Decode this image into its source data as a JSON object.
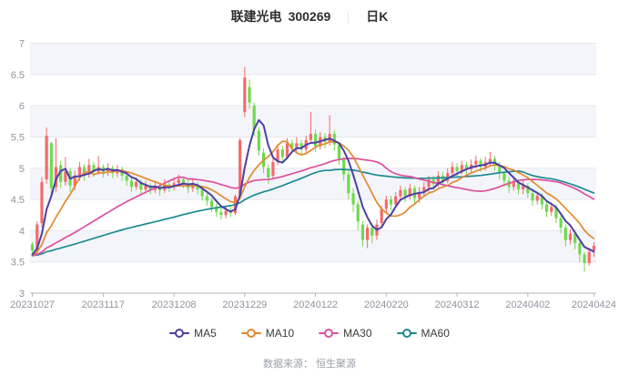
{
  "title": {
    "stock_name": "联建光电",
    "stock_code": "300269",
    "separator": "｜",
    "chart_type": "日K"
  },
  "footer": {
    "source_label": "数据来源： 恒生聚源"
  },
  "legend": [
    {
      "label": "MA5",
      "color": "#4b3fa5"
    },
    {
      "label": "MA10",
      "color": "#e08a2f"
    },
    {
      "label": "MA30",
      "color": "#de4f9e"
    },
    {
      "label": "MA60",
      "color": "#1e8a93"
    }
  ],
  "colors": {
    "up": "#f56a6a",
    "down": "#70d94e",
    "band": "#f4f5fa",
    "grid": "#e6e8ef",
    "axis_text": "#8f949e",
    "axis_line": "#b0b3ba",
    "title_text": "#2f2f2f"
  },
  "chart_data": {
    "type": "candlestick",
    "title": "联建光电 300269 日K",
    "ylim": [
      3,
      7
    ],
    "y_ticks": [
      3,
      3.5,
      4,
      4.5,
      5,
      5.5,
      6,
      6.5,
      7
    ],
    "x_tick_labels": [
      "20231027",
      "20231117",
      "20231208",
      "20231229",
      "20240122",
      "20240220",
      "20240312",
      "20240402",
      "20240424"
    ],
    "x_tick_indices": [
      0,
      15,
      30,
      45,
      60,
      75,
      90,
      105,
      119
    ],
    "grid": true,
    "legend_position": "bottom",
    "ma_windows": [
      5,
      10,
      30,
      60
    ],
    "ma_prehistory_close_estimate": 3.6,
    "candle_format": [
      "date",
      "open",
      "close",
      "high",
      "low"
    ],
    "candles": [
      [
        "20231027",
        3.78,
        3.68,
        3.82,
        3.58
      ],
      [
        "20231030",
        3.7,
        4.1,
        4.15,
        3.62
      ],
      [
        "20231031",
        4.12,
        4.78,
        4.86,
        4.05
      ],
      [
        "20231101",
        4.82,
        5.52,
        5.65,
        4.75
      ],
      [
        "20231102",
        5.4,
        4.68,
        5.42,
        4.58
      ],
      [
        "20231103",
        4.7,
        5.02,
        5.48,
        4.62
      ],
      [
        "20231106",
        5.05,
        4.78,
        5.12,
        4.68
      ],
      [
        "20231107",
        4.78,
        4.95,
        5.18,
        4.72
      ],
      [
        "20231108",
        4.95,
        4.72,
        5.0,
        4.62
      ],
      [
        "20231109",
        4.72,
        4.88,
        4.96,
        4.65
      ],
      [
        "20231110",
        4.88,
        5.02,
        5.1,
        4.8
      ],
      [
        "20231113",
        5.02,
        4.9,
        5.06,
        4.8
      ],
      [
        "20231114",
        4.9,
        5.05,
        5.15,
        4.85
      ],
      [
        "20231115",
        5.05,
        4.94,
        5.1,
        4.86
      ],
      [
        "20231116",
        4.94,
        5.02,
        5.2,
        4.9
      ],
      [
        "20231117",
        5.02,
        4.94,
        5.06,
        4.85
      ],
      [
        "20231120",
        4.94,
        5.0,
        5.08,
        4.88
      ],
      [
        "20231121",
        5.0,
        4.92,
        5.04,
        4.84
      ],
      [
        "20231122",
        4.92,
        4.98,
        5.05,
        4.86
      ],
      [
        "20231123",
        4.98,
        4.88,
        5.02,
        4.8
      ],
      [
        "20231124",
        4.88,
        4.8,
        4.92,
        4.72
      ],
      [
        "20231127",
        4.8,
        4.7,
        4.84,
        4.62
      ],
      [
        "20231128",
        4.7,
        4.78,
        4.85,
        4.65
      ],
      [
        "20231129",
        4.78,
        4.66,
        4.82,
        4.58
      ],
      [
        "20231130",
        4.66,
        4.72,
        4.8,
        4.6
      ],
      [
        "20231201",
        4.72,
        4.65,
        4.76,
        4.58
      ],
      [
        "20231204",
        4.65,
        4.72,
        4.8,
        4.6
      ],
      [
        "20231205",
        4.72,
        4.65,
        4.76,
        4.56
      ],
      [
        "20231206",
        4.65,
        4.74,
        4.82,
        4.6
      ],
      [
        "20231207",
        4.74,
        4.7,
        4.8,
        4.62
      ],
      [
        "20231208",
        4.7,
        4.76,
        4.84,
        4.64
      ],
      [
        "20231211",
        4.76,
        4.82,
        4.9,
        4.7
      ],
      [
        "20231212",
        4.82,
        4.75,
        4.86,
        4.68
      ],
      [
        "20231213",
        4.75,
        4.68,
        4.8,
        4.6
      ],
      [
        "20231214",
        4.68,
        4.74,
        4.82,
        4.62
      ],
      [
        "20231215",
        4.74,
        4.66,
        4.78,
        4.58
      ],
      [
        "20231218",
        4.66,
        4.55,
        4.7,
        4.48
      ],
      [
        "20231219",
        4.55,
        4.48,
        4.6,
        4.4
      ],
      [
        "20231220",
        4.48,
        4.38,
        4.52,
        4.3
      ],
      [
        "20231221",
        4.38,
        4.3,
        4.44,
        4.22
      ],
      [
        "20231222",
        4.3,
        4.25,
        4.36,
        4.18
      ],
      [
        "20231225",
        4.25,
        4.32,
        4.4,
        4.2
      ],
      [
        "20231226",
        4.32,
        4.28,
        4.38,
        4.22
      ],
      [
        "20231227",
        4.28,
        4.55,
        4.58,
        4.25
      ],
      [
        "20231228",
        4.56,
        5.45,
        5.48,
        4.5
      ],
      [
        "20231229",
        5.9,
        6.45,
        6.62,
        5.82
      ],
      [
        "20240102",
        6.3,
        6.05,
        6.42,
        5.95
      ],
      [
        "20240103",
        6.0,
        5.62,
        6.05,
        5.52
      ],
      [
        "20240104",
        5.6,
        5.28,
        5.66,
        5.2
      ],
      [
        "20240105",
        5.25,
        5.02,
        5.32,
        4.92
      ],
      [
        "20240108",
        5.0,
        4.85,
        5.06,
        4.75
      ],
      [
        "20240109",
        4.88,
        5.1,
        5.18,
        4.82
      ],
      [
        "20240110",
        5.1,
        5.3,
        5.38,
        5.05
      ],
      [
        "20240111",
        5.3,
        5.18,
        5.36,
        5.1
      ],
      [
        "20240112",
        5.18,
        5.4,
        5.48,
        5.14
      ],
      [
        "20240115",
        5.4,
        5.32,
        5.46,
        5.24
      ],
      [
        "20240116",
        5.32,
        5.4,
        5.5,
        5.26
      ],
      [
        "20240117",
        5.4,
        5.3,
        5.46,
        5.22
      ],
      [
        "20240118",
        5.3,
        5.45,
        5.52,
        5.25
      ],
      [
        "20240119",
        5.45,
        5.55,
        5.9,
        5.4
      ],
      [
        "20240122",
        5.55,
        5.35,
        5.62,
        5.26
      ],
      [
        "20240123",
        5.35,
        5.5,
        5.58,
        5.3
      ],
      [
        "20240124",
        5.5,
        5.42,
        5.56,
        5.32
      ],
      [
        "20240125",
        5.42,
        5.55,
        5.85,
        5.36
      ],
      [
        "20240126",
        5.55,
        5.38,
        5.6,
        5.28
      ],
      [
        "20240129",
        5.38,
        5.15,
        5.42,
        5.05
      ],
      [
        "20240130",
        5.15,
        4.9,
        5.18,
        4.8
      ],
      [
        "20240131",
        4.9,
        4.6,
        4.95,
        4.5
      ],
      [
        "20240201",
        4.6,
        4.42,
        4.68,
        4.3
      ],
      [
        "20240202",
        4.42,
        4.15,
        4.48,
        4.0
      ],
      [
        "20240205",
        4.1,
        3.85,
        4.15,
        3.75
      ],
      [
        "20240206",
        3.85,
        4.05,
        4.1,
        3.72
      ],
      [
        "20240207",
        4.05,
        3.92,
        4.12,
        3.8
      ],
      [
        "20240208",
        3.92,
        4.1,
        4.18,
        3.85
      ],
      [
        "20240219",
        4.12,
        4.35,
        4.4,
        4.06
      ],
      [
        "20240220",
        4.35,
        4.5,
        4.56,
        4.28
      ],
      [
        "20240221",
        4.5,
        4.42,
        4.56,
        4.32
      ],
      [
        "20240222",
        4.42,
        4.55,
        4.62,
        4.38
      ],
      [
        "20240223",
        4.55,
        4.65,
        4.72,
        4.5
      ],
      [
        "20240226",
        4.65,
        4.55,
        4.7,
        4.46
      ],
      [
        "20240227",
        4.55,
        4.68,
        4.75,
        4.5
      ],
      [
        "20240228",
        4.68,
        4.52,
        4.72,
        4.42
      ],
      [
        "20240229",
        4.52,
        4.62,
        4.7,
        4.45
      ],
      [
        "20240301",
        4.62,
        4.7,
        4.78,
        4.55
      ],
      [
        "20240304",
        4.7,
        4.82,
        4.88,
        4.62
      ],
      [
        "20240305",
        4.82,
        4.75,
        4.88,
        4.66
      ],
      [
        "20240306",
        4.75,
        4.88,
        4.95,
        4.7
      ],
      [
        "20240307",
        4.88,
        4.8,
        4.94,
        4.72
      ],
      [
        "20240308",
        4.8,
        4.92,
        5.0,
        4.76
      ],
      [
        "20240311",
        4.92,
        5.02,
        5.1,
        4.86
      ],
      [
        "20240312",
        5.02,
        4.95,
        5.08,
        4.86
      ],
      [
        "20240313",
        4.95,
        5.05,
        5.12,
        4.9
      ],
      [
        "20240314",
        5.05,
        4.98,
        5.1,
        4.88
      ],
      [
        "20240315",
        4.98,
        5.06,
        5.14,
        4.92
      ],
      [
        "20240318",
        5.06,
        5.12,
        5.2,
        5.0
      ],
      [
        "20240319",
        5.12,
        5.02,
        5.16,
        4.94
      ],
      [
        "20240320",
        5.02,
        5.1,
        5.18,
        4.96
      ],
      [
        "20240321",
        5.1,
        5.15,
        5.26,
        5.04
      ],
      [
        "20240322",
        5.15,
        5.05,
        5.2,
        4.96
      ],
      [
        "20240325",
        5.05,
        4.92,
        5.1,
        4.82
      ],
      [
        "20240326",
        4.92,
        4.8,
        4.96,
        4.7
      ],
      [
        "20240327",
        4.8,
        4.7,
        4.86,
        4.6
      ],
      [
        "20240328",
        4.7,
        4.78,
        4.84,
        4.64
      ],
      [
        "20240329",
        4.78,
        4.66,
        4.82,
        4.58
      ],
      [
        "20240401",
        4.66,
        4.72,
        4.8,
        4.58
      ],
      [
        "20240402",
        4.72,
        4.6,
        4.76,
        4.52
      ],
      [
        "20240403",
        4.6,
        4.48,
        4.65,
        4.4
      ],
      [
        "20240408",
        4.48,
        4.56,
        4.62,
        4.42
      ],
      [
        "20240409",
        4.56,
        4.42,
        4.6,
        4.34
      ],
      [
        "20240410",
        4.42,
        4.3,
        4.46,
        4.22
      ],
      [
        "20240411",
        4.3,
        4.38,
        4.45,
        4.24
      ],
      [
        "20240412",
        4.38,
        4.2,
        4.42,
        4.12
      ],
      [
        "20240415",
        4.2,
        4.05,
        4.25,
        3.96
      ],
      [
        "20240416",
        4.05,
        3.85,
        4.1,
        3.75
      ],
      [
        "20240417",
        3.85,
        3.95,
        4.02,
        3.78
      ],
      [
        "20240418",
        3.95,
        3.8,
        4.0,
        3.7
      ],
      [
        "20240419",
        3.8,
        3.62,
        3.85,
        3.5
      ],
      [
        "20240422",
        3.62,
        3.48,
        3.66,
        3.34
      ],
      [
        "20240423",
        3.48,
        3.66,
        3.72,
        3.44
      ],
      [
        "20240424",
        3.68,
        3.76,
        3.82,
        3.58
      ]
    ]
  }
}
